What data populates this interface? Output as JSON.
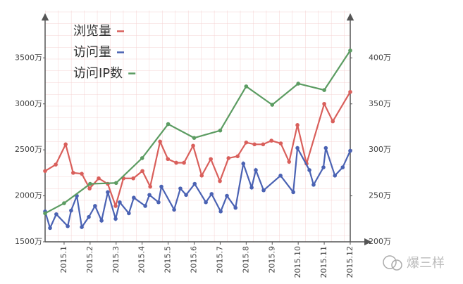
{
  "chart_data": {
    "type": "line",
    "xlim": [
      0.27,
      12
    ],
    "xticks": [
      {
        "value": 1,
        "label": "2015.1"
      },
      {
        "value": 2,
        "label": "2015.2"
      },
      {
        "value": 3,
        "label": "2015.3"
      },
      {
        "value": 4,
        "label": "2015.4"
      },
      {
        "value": 5,
        "label": "2015.5"
      },
      {
        "value": 6,
        "label": "2015.6"
      },
      {
        "value": 7,
        "label": "2015.7"
      },
      {
        "value": 8,
        "label": "2015.8"
      },
      {
        "value": 9,
        "label": "2015.9"
      },
      {
        "value": 10,
        "label": "2015.10"
      },
      {
        "value": 11,
        "label": "2015.11"
      },
      {
        "value": 12,
        "label": "2015.12"
      }
    ],
    "ylim": [
      1500,
      3900
    ],
    "yticks": [
      {
        "value": 1500,
        "label": "1500万"
      },
      {
        "value": 2000,
        "label": "2000万"
      },
      {
        "value": 2500,
        "label": "2500万"
      },
      {
        "value": 3000,
        "label": "3000万"
      },
      {
        "value": 3500,
        "label": "3500万"
      }
    ],
    "y2lim": [
      200,
      440
    ],
    "y2ticks": [
      {
        "value": 200,
        "label": "200万"
      },
      {
        "value": 250,
        "label": "250万"
      },
      {
        "value": 300,
        "label": "300万"
      },
      {
        "value": 350,
        "label": "350万"
      },
      {
        "value": 400,
        "label": "400万"
      }
    ],
    "grid": true,
    "legend": "top-left",
    "series": [
      {
        "name": "浏览量",
        "color": "#d95f5b",
        "x": [
          0.27,
          0.68,
          1.06,
          1.35,
          1.68,
          1.98,
          2.33,
          2.68,
          2.98,
          3.28,
          3.66,
          4.01,
          4.31,
          4.69,
          4.99,
          5.31,
          5.61,
          5.96,
          6.29,
          6.64,
          6.99,
          7.32,
          7.67,
          8.0,
          8.32,
          8.65,
          8.97,
          9.33,
          9.65,
          9.97,
          10.32,
          11.0,
          11.33,
          12.0
        ],
        "values": [
          2270,
          2340,
          2560,
          2250,
          2240,
          2080,
          2190,
          2130,
          1890,
          2190,
          2190,
          2270,
          2100,
          2590,
          2400,
          2360,
          2360,
          2545,
          2220,
          2400,
          2160,
          2410,
          2430,
          2580,
          2560,
          2560,
          2600,
          2570,
          2370,
          2770,
          2350,
          3000,
          2810,
          3130
        ]
      },
      {
        "name": "访问量",
        "color": "#4a62b3",
        "x": [
          0.27,
          0.46,
          0.7,
          1.14,
          1.27,
          1.49,
          1.68,
          1.95,
          2.19,
          2.44,
          2.68,
          2.98,
          3.14,
          3.49,
          3.68,
          4.12,
          4.28,
          4.63,
          4.74,
          5.23,
          5.47,
          5.69,
          6.02,
          6.45,
          6.67,
          7.02,
          7.26,
          7.59,
          7.89,
          8.21,
          8.37,
          8.67,
          9.32,
          9.81,
          9.97,
          10.43,
          10.59,
          10.97,
          11.06,
          11.41,
          11.71,
          12.0
        ],
        "values": [
          1830,
          1650,
          1800,
          1670,
          1840,
          2000,
          1660,
          1770,
          1890,
          1730,
          2040,
          1750,
          1930,
          1810,
          1980,
          1890,
          2010,
          1930,
          2100,
          1850,
          2080,
          2010,
          2130,
          1930,
          2020,
          1830,
          2000,
          1870,
          2350,
          2090,
          2280,
          2060,
          2220,
          2040,
          2520,
          2280,
          2120,
          2310,
          2520,
          2220,
          2310,
          2490
        ]
      },
      {
        "name": "访问IP数",
        "color": "#5c9c62",
        "axis": "y2",
        "x": [
          0.27,
          1,
          2,
          3,
          4,
          5,
          6,
          7,
          8,
          9,
          10,
          11,
          12
        ],
        "values": [
          231,
          242,
          263,
          264,
          291,
          328,
          313,
          321,
          369,
          349,
          372,
          365,
          408
        ]
      }
    ]
  },
  "watermark": "爆三样"
}
